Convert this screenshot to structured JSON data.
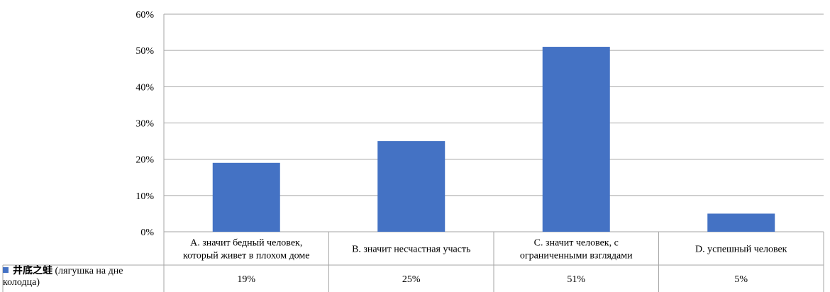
{
  "chart_data": {
    "type": "bar",
    "categories": [
      [
        "A. значит бедный человек,",
        "который живет в плохом доме"
      ],
      [
        "B. значит несчастная участь"
      ],
      [
        "C. значит человек, с",
        "ограниченными взглядами"
      ],
      [
        "D. успешный человек"
      ]
    ],
    "series": [
      {
        "name_cjk": "井底之蛙",
        "name_rest": "(лягушка на дне",
        "name_rest2": "колодца)",
        "values": [
          19,
          25,
          51,
          5
        ],
        "value_labels": [
          "19%",
          "25%",
          "51%",
          "5%"
        ],
        "color": "#4472c4"
      }
    ],
    "ylim": [
      0,
      60
    ],
    "yticks": [
      "0%",
      "10%",
      "20%",
      "30%",
      "40%",
      "50%",
      "60%"
    ],
    "grid": true,
    "legend": "data-table"
  }
}
